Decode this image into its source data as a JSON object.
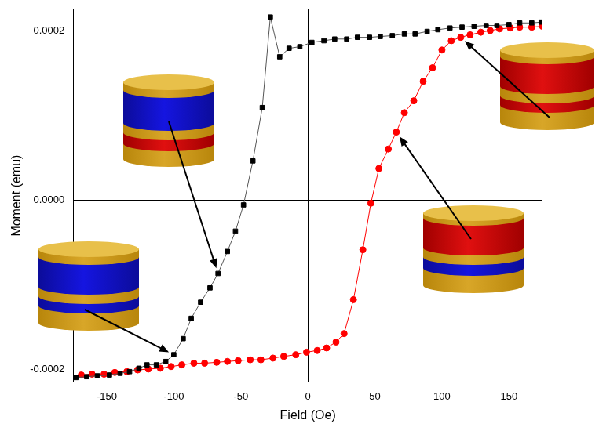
{
  "chart_data": {
    "type": "scatter",
    "x_label": "Field (Oe)",
    "y_label": "Moment (emu)",
    "xlim": [
      -175,
      175
    ],
    "xticks": [
      -150,
      -100,
      -50,
      0,
      50,
      100,
      150
    ],
    "ylim": [
      -0.000215,
      0.000225
    ],
    "yticks": [
      {
        "value": -0.0002,
        "label": "-0.0002"
      },
      {
        "value": 0,
        "label": "0.0000"
      },
      {
        "value": 0.0002,
        "label": "0.0002"
      }
    ],
    "grid": false,
    "series": [
      {
        "color": "#000000",
        "marker": "square",
        "line_style": "solid",
        "x": [
          -173,
          -165,
          -157,
          -148,
          -140,
          -133,
          -126,
          -120,
          -113,
          -106,
          -100,
          -93,
          -87,
          -80,
          -73,
          -67,
          -60,
          -54,
          -48,
          -41,
          -34,
          -28,
          -21,
          -14,
          -6,
          3,
          12,
          20,
          29,
          37,
          46,
          54,
          63,
          72,
          80,
          89,
          97,
          106,
          115,
          124,
          133,
          141,
          150,
          158,
          167,
          174
        ],
        "values": [
          -0.00021,
          -0.000209,
          -0.000208,
          -0.000207,
          -0.000205,
          -0.000203,
          -0.000199,
          -0.000195,
          -0.000195,
          -0.000191,
          -0.000183,
          -0.000164,
          -0.00014,
          -0.000121,
          -0.000104,
          -8.7e-05,
          -6.1e-05,
          -3.7e-05,
          -6e-06,
          4.6e-05,
          0.000109,
          0.000216,
          0.000169,
          0.000179,
          0.000181,
          0.000186,
          0.000188,
          0.00019,
          0.00019,
          0.000192,
          0.000192,
          0.000193,
          0.000194,
          0.000196,
          0.000196,
          0.000199,
          0.000201,
          0.000203,
          0.000204,
          0.000205,
          0.000206,
          0.000206,
          0.000207,
          0.000209,
          0.000209,
          0.00021
        ]
      },
      {
        "color": "#ff0000",
        "marker": "circle",
        "line_style": "solid",
        "x": [
          -169,
          -161,
          -152,
          -144,
          -135,
          -127,
          -119,
          -110,
          -102,
          -94,
          -85,
          -77,
          -68,
          -60,
          -52,
          -43,
          -35,
          -26,
          -18,
          -9,
          -1,
          7,
          14,
          21,
          27,
          34,
          41,
          47,
          53,
          60,
          66,
          72,
          79,
          86,
          93,
          100,
          107,
          114,
          121,
          129,
          136,
          143,
          151,
          158,
          167,
          175,
          175
        ],
        "values": [
          -0.000207,
          -0.000206,
          -0.000206,
          -0.000204,
          -0.000203,
          -0.000201,
          -0.0002,
          -0.000199,
          -0.000197,
          -0.000195,
          -0.000193,
          -0.000193,
          -0.000192,
          -0.000191,
          -0.00019,
          -0.000189,
          -0.000189,
          -0.000187,
          -0.000185,
          -0.000183,
          -0.00018,
          -0.000178,
          -0.000175,
          -0.000168,
          -0.000158,
          -0.000118,
          -5.9e-05,
          -4e-06,
          3.7e-05,
          6e-05,
          8e-05,
          0.000103,
          0.000117,
          0.00014,
          0.000156,
          0.000177,
          0.000188,
          0.000192,
          0.000195,
          0.000198,
          0.0002,
          0.000202,
          0.000203,
          0.000204,
          0.000204,
          0.000205,
          0.000206
        ]
      }
    ]
  }
}
